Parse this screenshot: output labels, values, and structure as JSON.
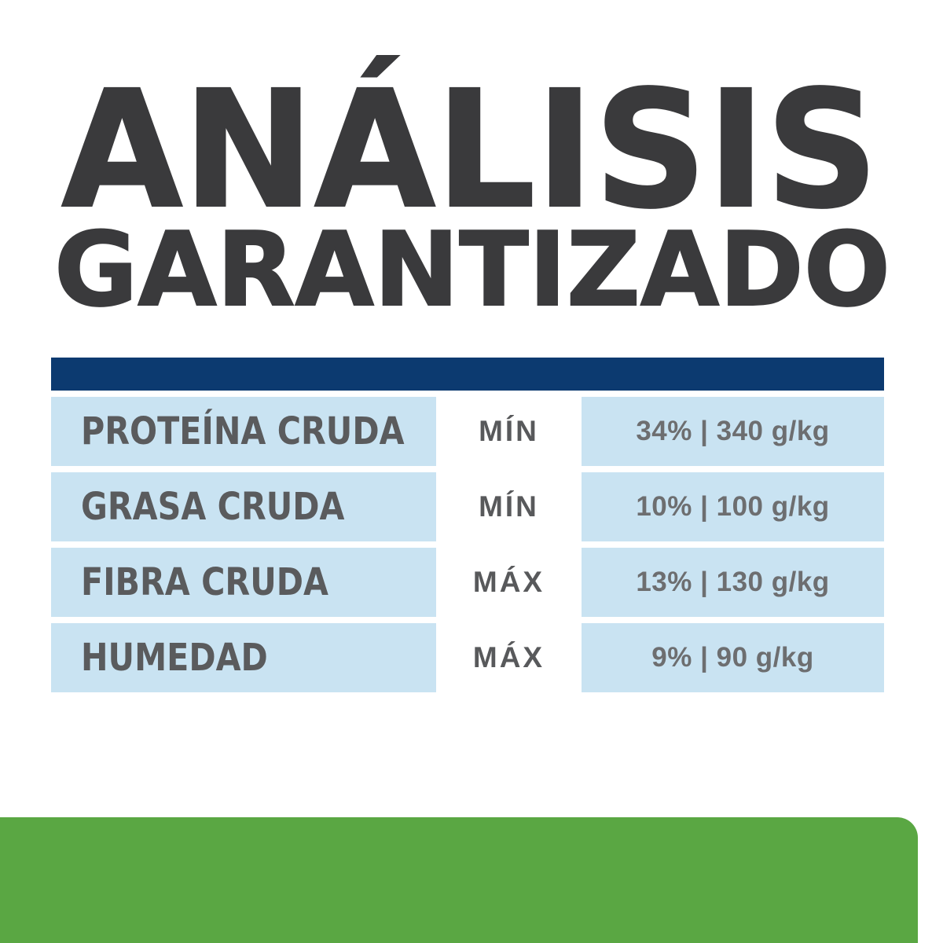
{
  "title": {
    "line1": "ANÁLISIS",
    "line2": "GARANTIZADO",
    "color": "#3a3a3c"
  },
  "table": {
    "header_bar_color": "#0c3a70",
    "row_background_color": "#c9e3f2",
    "label_color": "#5a5b5d",
    "value_color": "#6d6e70",
    "rows": [
      {
        "label": "PROTEÍNA CRUDA",
        "qualifier": "MÍN",
        "value": "34% | 340 g/kg"
      },
      {
        "label": "GRASA CRUDA",
        "qualifier": "MÍN",
        "value": "10% | 100 g/kg"
      },
      {
        "label": "FIBRA CRUDA",
        "qualifier": "MÁX",
        "value": "13% | 130 g/kg"
      },
      {
        "label": "HUMEDAD",
        "qualifier": "MÁX",
        "value": "9% | 90 g/kg"
      }
    ]
  },
  "footer": {
    "bar_color": "#5aa743"
  }
}
